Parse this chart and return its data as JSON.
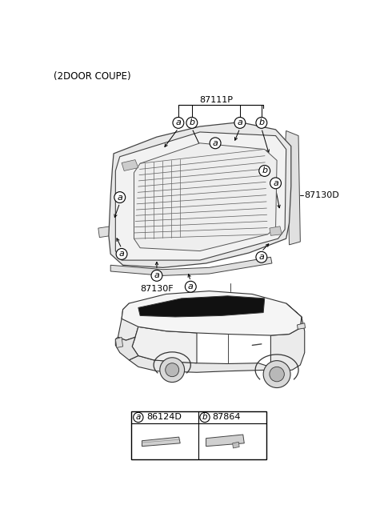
{
  "title": "(2DOOR COUPE)",
  "bg": "#ffffff",
  "part_87111P": "87111P",
  "part_87130D": "87130D",
  "part_87130F": "87130F",
  "legend_a_code": "86124D",
  "legend_b_code": "87864"
}
